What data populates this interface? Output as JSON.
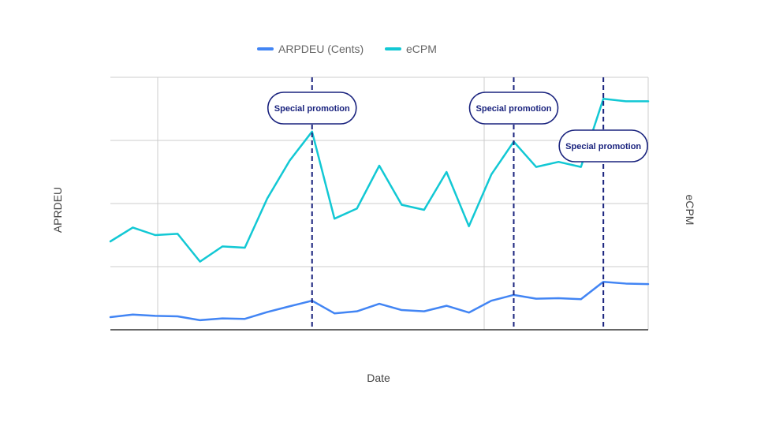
{
  "chart_data": {
    "type": "line",
    "title": "",
    "xlabel": "Date",
    "ylabel": "APRDEU",
    "y2label": "eCPM",
    "x": [
      1,
      2,
      3,
      4,
      5,
      6,
      7,
      8,
      9,
      10,
      11,
      12,
      13,
      14,
      15,
      16,
      17,
      18,
      19,
      20,
      21,
      22,
      23,
      24,
      25
    ],
    "ylim": [
      0,
      100
    ],
    "grid": true,
    "legend_position": "top-center",
    "series": [
      {
        "name": "ARPDEU (Cents)",
        "color": "#4285f4",
        "values": [
          5,
          6,
          5.5,
          5.3,
          3.8,
          4.5,
          4.3,
          7,
          9.3,
          11.5,
          6.5,
          7.3,
          10.3,
          7.8,
          7.3,
          9.5,
          6.8,
          11.5,
          13.8,
          12.3,
          12.5,
          12.1,
          19,
          18.3,
          18.1
        ],
        "axis": "left"
      },
      {
        "name": "eCPM",
        "color": "#12c8d4",
        "values": [
          35,
          40.5,
          37.5,
          38,
          27,
          33,
          32.5,
          52,
          67,
          78.5,
          44,
          48,
          65,
          49.5,
          47.5,
          62.5,
          41,
          61.5,
          74.5,
          64.5,
          66.5,
          64.5,
          91.5,
          90.5,
          90.5
        ],
        "axis": "right"
      }
    ],
    "annotations": [
      {
        "x": 10,
        "label": "Special promotion"
      },
      {
        "x": 19,
        "label": "Special promotion"
      },
      {
        "x": 23,
        "label": "Special promotion"
      }
    ]
  },
  "colors": {
    "grid": "#cccccc",
    "axis": "#333333",
    "annotation": "#1a237e"
  }
}
